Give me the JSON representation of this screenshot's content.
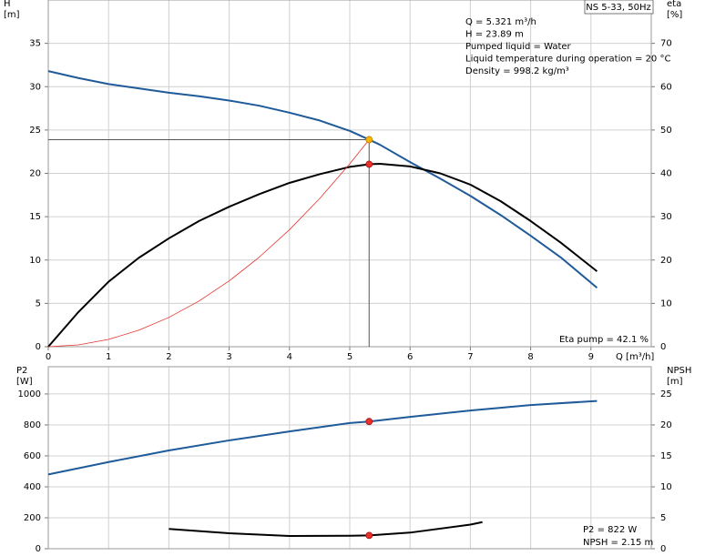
{
  "chart_data": [
    {
      "type": "line",
      "title": "NS 5-33, 50Hz",
      "annotations": [
        "Q = 5.321 m³/h",
        "H = 23.89 m",
        "Pumped liquid = Water",
        "Liquid temperature during operation = 20 °C",
        "Density = 998.2 kg/m³"
      ],
      "note": "Eta pump = 42.1 %",
      "xlabel": "Q [m³/h]",
      "ylabel": [
        "H",
        "[m]"
      ],
      "y2label": [
        "eta",
        "[%]"
      ],
      "xlim": [
        0,
        10
      ],
      "xticks": [
        0,
        1,
        2,
        3,
        4,
        5,
        6,
        7,
        8,
        9
      ],
      "ylim": [
        0,
        40
      ],
      "yticks": [
        0,
        5,
        10,
        15,
        20,
        25,
        30,
        35
      ],
      "y2lim": [
        0,
        80
      ],
      "y2ticks": [
        0,
        10,
        20,
        30,
        40,
        50,
        60,
        70
      ],
      "grid": true,
      "series": [
        {
          "color": "#1f5a99",
          "width": 2,
          "axis": "y",
          "x": [
            0,
            0.5,
            1,
            1.5,
            2,
            2.5,
            3,
            3.5,
            4,
            4.5,
            5,
            5.321,
            5.5,
            6,
            6.5,
            7,
            7.5,
            8,
            8.5,
            9.1
          ],
          "values": [
            31.8,
            31.0,
            30.3,
            29.8,
            29.3,
            28.9,
            28.4,
            27.8,
            27.0,
            26.1,
            24.9,
            23.89,
            23.3,
            21.3,
            19.4,
            17.4,
            15.2,
            12.8,
            10.3,
            6.8
          ]
        },
        {
          "color": "#000000",
          "width": 2,
          "axis": "y2",
          "x": [
            0,
            0.5,
            1,
            1.5,
            2,
            2.5,
            3,
            3.5,
            4,
            4.5,
            5,
            5.321,
            5.5,
            6,
            6.5,
            7,
            7.5,
            8,
            8.5,
            9.1
          ],
          "values": [
            0,
            8,
            15,
            20.5,
            25,
            29,
            32.3,
            35.2,
            37.8,
            39.8,
            41.5,
            42.1,
            42.2,
            41.6,
            40.0,
            37.4,
            33.6,
            29,
            24,
            17.4
          ]
        },
        {
          "color": "#e8312a",
          "width": 0.8,
          "axis": "y",
          "x": [
            0,
            0.5,
            1,
            1.5,
            2,
            2.5,
            3,
            3.5,
            4,
            4.5,
            5,
            5.321
          ],
          "values": [
            0,
            0.21,
            0.84,
            1.9,
            3.38,
            5.27,
            7.59,
            10.34,
            13.5,
            17.09,
            21.1,
            23.89
          ]
        }
      ],
      "points": [
        {
          "x": 5.321,
          "y": 23.89,
          "axis": "y",
          "color": "#f5b800",
          "guide": true
        },
        {
          "x": 5.321,
          "y": 42.1,
          "axis": "y2",
          "color": "#e8312a",
          "guide": false
        }
      ]
    },
    {
      "type": "line",
      "annotations": [
        "P2 = 822 W",
        "NPSH = 2.15 m"
      ],
      "ylabel": [
        "P2",
        "[W]"
      ],
      "y2label": [
        "NPSH",
        "[m]"
      ],
      "xlim": [
        0,
        10
      ],
      "ylim": [
        0,
        1176
      ],
      "yticks": [
        0,
        200,
        400,
        600,
        800,
        1000
      ],
      "y2lim": [
        0,
        29.4
      ],
      "y2ticks": [
        0,
        5,
        10,
        15,
        20,
        25
      ],
      "grid": true,
      "series": [
        {
          "color": "#1f5a99",
          "width": 2,
          "axis": "y",
          "x": [
            0,
            1,
            2,
            3,
            4,
            5,
            5.321,
            6,
            7,
            8,
            9.1
          ],
          "values": [
            480,
            560,
            635,
            700,
            758,
            812,
            822,
            852,
            893,
            928,
            955
          ]
        },
        {
          "color": "#000000",
          "width": 2,
          "axis": "y2",
          "x": [
            2,
            3,
            4,
            5,
            5.321,
            6,
            7,
            7.2
          ],
          "values": [
            3.2,
            2.5,
            2.05,
            2.1,
            2.15,
            2.6,
            3.9,
            4.3
          ]
        }
      ],
      "points": [
        {
          "x": 5.321,
          "y": 822,
          "axis": "y",
          "color": "#e8312a",
          "guide": false
        },
        {
          "x": 5.321,
          "y": 2.15,
          "axis": "y2",
          "color": "#e8312a",
          "guide": false
        }
      ]
    }
  ]
}
